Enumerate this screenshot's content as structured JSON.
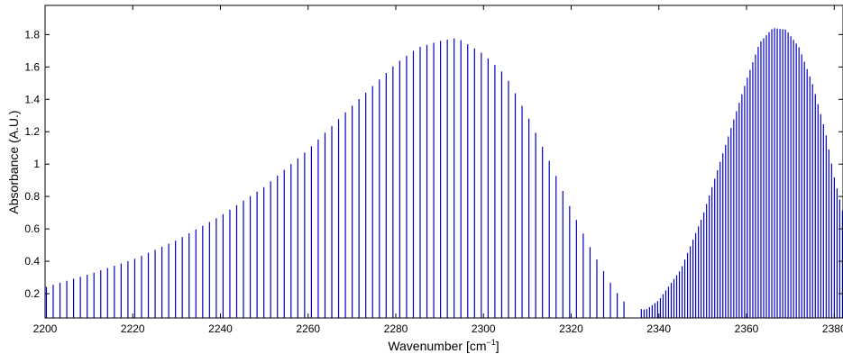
{
  "chart_data": {
    "type": "line",
    "title": "",
    "xlabel": "Wavenumber [cm",
    "xlabel_sup": "−1",
    "xlabel_suffix": "]",
    "ylabel": "Absorbance (A.U.)",
    "xlim": [
      2200,
      2382
    ],
    "ylim": [
      0.05,
      1.98
    ],
    "xticks": [
      2200,
      2220,
      2240,
      2260,
      2280,
      2300,
      2320,
      2340,
      2360,
      2380
    ],
    "xtick_labels": [
      "2200",
      "2220",
      "2240",
      "2260",
      "2280",
      "2300",
      "2320",
      "2340",
      "2360",
      "2380"
    ],
    "yticks": [
      0.2,
      0.4,
      0.6,
      0.8,
      1.0,
      1.2,
      1.4,
      1.6,
      1.8
    ],
    "ytick_labels": [
      "0.2",
      "0.4",
      "0.6",
      "0.8",
      "1",
      "1.2",
      "1.4",
      "1.6",
      "1.8"
    ],
    "grid": false,
    "legend": "none",
    "line_color": "#0000cc",
    "series": [
      {
        "style": "rovibrational line spectrum (baseline to peak at each line)",
        "envelope_points": [
          [
            2200,
            0.24
          ],
          [
            2210,
            0.32
          ],
          [
            2220,
            0.41
          ],
          [
            2230,
            0.53
          ],
          [
            2240,
            0.68
          ],
          [
            2250,
            0.86
          ],
          [
            2260,
            1.09
          ],
          [
            2270,
            1.36
          ],
          [
            2280,
            1.62
          ],
          [
            2285,
            1.72
          ],
          [
            2290,
            1.76
          ],
          [
            2294,
            1.78
          ],
          [
            2300,
            1.68
          ],
          [
            2305,
            1.55
          ],
          [
            2310,
            1.3
          ],
          [
            2315,
            1.02
          ],
          [
            2320,
            0.72
          ],
          [
            2325,
            0.45
          ],
          [
            2330,
            0.22
          ],
          [
            2333,
            0.12
          ],
          [
            2337,
            0.1
          ],
          [
            2340,
            0.16
          ],
          [
            2345,
            0.35
          ],
          [
            2350,
            0.68
          ],
          [
            2355,
            1.1
          ],
          [
            2360,
            1.52
          ],
          [
            2363,
            1.75
          ],
          [
            2366,
            1.84
          ],
          [
            2369,
            1.83
          ],
          [
            2372,
            1.72
          ],
          [
            2375,
            1.5
          ],
          [
            2378,
            1.2
          ],
          [
            2380,
            0.92
          ],
          [
            2382,
            0.7
          ]
        ],
        "line_spacing_R_branch": 1.55,
        "line_spacing_P_branch": 0.62,
        "band_gap_x": 2335
      }
    ]
  }
}
